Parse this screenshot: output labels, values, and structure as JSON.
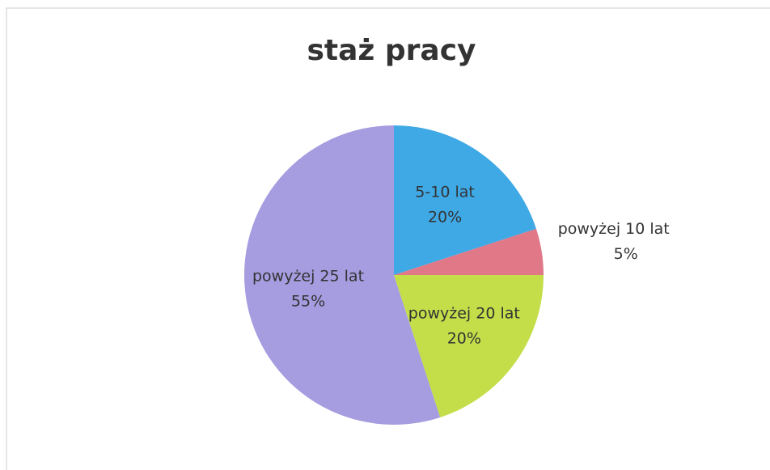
{
  "chart_data": {
    "type": "pie",
    "title": "staż pracy",
    "categories": [
      "5-10 lat",
      "powyżej 10 lat",
      "powyżej 20 lat",
      "powyżej 25 lat"
    ],
    "values": [
      20,
      5,
      20,
      55
    ],
    "value_labels": [
      "20%",
      "5%",
      "20%",
      "55%"
    ],
    "colors": [
      "#3fa9e6",
      "#e07888",
      "#c4de4a",
      "#a69ce0"
    ]
  }
}
